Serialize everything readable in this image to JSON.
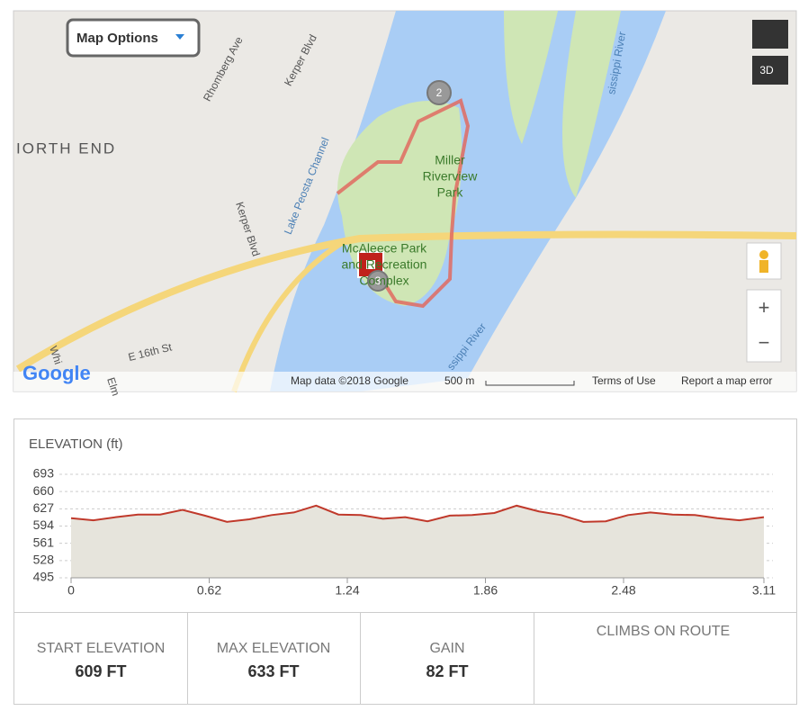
{
  "map": {
    "options_button": "Map Options",
    "labels": {
      "north_end": "IORTH END",
      "rhomberg": "Rhomberg Ave",
      "kerper_top": "Kerper Blvd",
      "kerper_mid": "Kerper Blvd",
      "channel": "Lake Peosta Channel",
      "park": [
        "Miller",
        "Riverview",
        "Park"
      ],
      "complex": [
        "McAleece Park",
        "and Recreation",
        "Complex"
      ],
      "street": "E 16th St",
      "river_top": "sissippi River",
      "river_bottom": "ssippi River",
      "whi": "Whi",
      "elm": "Elm"
    },
    "markers": [
      "2",
      "3"
    ],
    "logo": "Google",
    "attribution": "Map data ©2018 Google",
    "scale": "500 m",
    "terms": "Terms of Use",
    "report": "Report a map error",
    "btn_3d": "3D",
    "zoom_in": "+",
    "zoom_out": "−"
  },
  "chart_data": {
    "type": "area",
    "title": "ELEVATION (ft)",
    "color": "#c0392b",
    "fill": "#e6e4dc",
    "x": [
      0,
      0.1,
      0.2,
      0.3,
      0.4,
      0.5,
      0.6,
      0.7,
      0.8,
      0.9,
      1.0,
      1.1,
      1.2,
      1.3,
      1.4,
      1.5,
      1.6,
      1.7,
      1.8,
      1.9,
      2.0,
      2.1,
      2.2,
      2.3,
      2.4,
      2.5,
      2.6,
      2.7,
      2.8,
      2.9,
      3.0,
      3.11
    ],
    "values": [
      609,
      605,
      611,
      616,
      616,
      625,
      614,
      602,
      607,
      615,
      620,
      633,
      616,
      615,
      608,
      611,
      603,
      614,
      615,
      619,
      633,
      622,
      615,
      602,
      603,
      615,
      620,
      616,
      615,
      609,
      605,
      611
    ],
    "xlim": [
      0,
      3.11
    ],
    "ylim": [
      495,
      693
    ],
    "xticks": [
      0,
      0.62,
      1.24,
      1.86,
      2.48,
      3.11
    ],
    "yticks": [
      495,
      528,
      561,
      594,
      627,
      660,
      693
    ],
    "grid": true
  },
  "stats": [
    {
      "label": "START ELEVATION",
      "value": "609 FT"
    },
    {
      "label": "MAX ELEVATION",
      "value": "633 FT"
    },
    {
      "label": "GAIN",
      "value": "82 FT"
    }
  ],
  "climbs_title": "CLIMBS ON ROUTE"
}
